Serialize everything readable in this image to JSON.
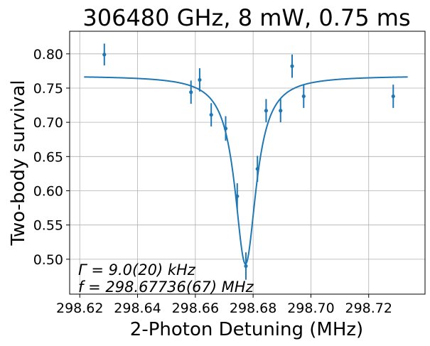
{
  "chart_data": {
    "type": "scatter",
    "title": "306480 GHz, 8 mW, 0.75 ms",
    "xlabel": "2-Photon Detuning (MHz)",
    "ylabel": "Two-body survival",
    "xlim": [
      298.6165,
      298.7395
    ],
    "ylim": [
      0.449,
      0.833
    ],
    "x_ticks": [
      "298.62",
      "298.64",
      "298.66",
      "298.68",
      "298.70",
      "298.72"
    ],
    "y_ticks": [
      "0.50",
      "0.55",
      "0.60",
      "0.65",
      "0.70",
      "0.75",
      "0.80"
    ],
    "grid": true,
    "color": "#1f77b4",
    "annotations": [
      "Γ = 9.0(20) kHz",
      "f = 298.67736(67) MHz"
    ],
    "series": [
      {
        "kind": "errorbar",
        "points": [
          {
            "x": 298.6285,
            "y": 0.799,
            "err": 0.016
          },
          {
            "x": 298.6585,
            "y": 0.744,
            "err": 0.017
          },
          {
            "x": 298.6615,
            "y": 0.762,
            "err": 0.017
          },
          {
            "x": 298.6655,
            "y": 0.711,
            "err": 0.017
          },
          {
            "x": 298.6705,
            "y": 0.691,
            "err": 0.018
          },
          {
            "x": 298.6745,
            "y": 0.592,
            "err": 0.019
          },
          {
            "x": 298.6775,
            "y": 0.49,
            "err": 0.02
          },
          {
            "x": 298.6815,
            "y": 0.632,
            "err": 0.019
          },
          {
            "x": 298.6845,
            "y": 0.717,
            "err": 0.017
          },
          {
            "x": 298.6895,
            "y": 0.717,
            "err": 0.017
          },
          {
            "x": 298.6935,
            "y": 0.782,
            "err": 0.017
          },
          {
            "x": 298.6975,
            "y": 0.738,
            "err": 0.017
          },
          {
            "x": 298.7285,
            "y": 0.738,
            "err": 0.017
          }
        ]
      },
      {
        "kind": "fit",
        "model": "lorentzian",
        "offset": 0.768,
        "depth": 0.275,
        "center": 298.67736,
        "hwhm": 0.0045,
        "x_range": [
          298.6215,
          298.7335
        ]
      }
    ]
  }
}
